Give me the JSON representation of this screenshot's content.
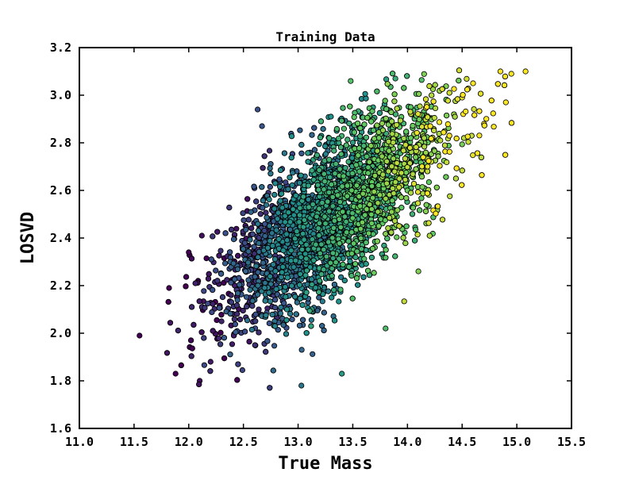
{
  "chart_data": {
    "type": "scatter",
    "title": "Training Data",
    "xlabel": "True Mass",
    "ylabel": "LOSVD",
    "xlim": [
      11.0,
      15.5
    ],
    "ylim": [
      1.6,
      3.2
    ],
    "x_ticks": [
      "11.0",
      "11.5",
      "12.0",
      "12.5",
      "13.0",
      "13.5",
      "14.0",
      "14.5",
      "15.0",
      "15.5"
    ],
    "y_ticks": [
      "1.6",
      "1.8",
      "2.0",
      "2.2",
      "2.4",
      "2.6",
      "2.8",
      "3.0",
      "3.2"
    ],
    "grid": false,
    "legend": "none",
    "colormap": [
      "#440154",
      "#3b528b",
      "#21918c",
      "#5ec962",
      "#fde725"
    ],
    "marker_edge_color": "#000000",
    "approx_point_count": 5000,
    "points_approx": [
      [
        11.55,
        1.99
      ],
      [
        11.82,
        2.19
      ],
      [
        11.88,
        1.83
      ],
      [
        12.0,
        2.34
      ],
      [
        12.1,
        1.8
      ],
      [
        12.12,
        2.41
      ],
      [
        12.2,
        1.88
      ],
      [
        12.3,
        2.05
      ],
      [
        12.63,
        2.94
      ],
      [
        12.67,
        2.87
      ],
      [
        12.8,
        2.5
      ],
      [
        13.03,
        1.78
      ],
      [
        13.3,
        2.91
      ],
      [
        13.4,
        1.83
      ],
      [
        13.8,
        2.02
      ],
      [
        14.0,
        2.6
      ],
      [
        14.1,
        2.26
      ],
      [
        14.3,
        2.81
      ],
      [
        14.6,
        3.05
      ],
      [
        14.85,
        3.1
      ],
      [
        14.95,
        3.09
      ],
      [
        15.08,
        3.1
      ],
      [
        14.9,
        2.97
      ],
      [
        14.7,
        2.88
      ],
      [
        14.5,
        2.99
      ],
      [
        12.7,
        2.3
      ],
      [
        13.0,
        2.4
      ],
      [
        13.2,
        2.5
      ],
      [
        13.5,
        2.6
      ],
      [
        13.8,
        2.75
      ]
    ],
    "trend": {
      "slope": 0.33,
      "intercept_at_13": 2.4,
      "spread_y": 0.16
    },
    "color_by": "LOSVD residual relative to trend (low = purple, high = yellow)"
  }
}
